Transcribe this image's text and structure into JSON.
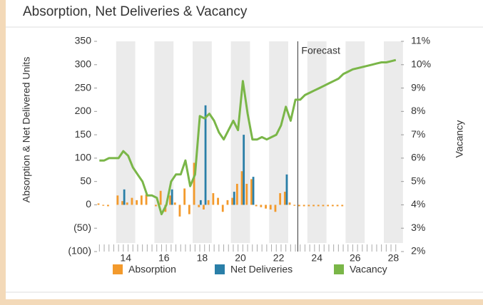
{
  "chart_data": {
    "type": "bar-line",
    "title": "Absorption, Net Deliveries & Vacancy",
    "y_label": "Absorption & Net Delivered Units",
    "y2_label": "Vacancy",
    "annotation": "Forecast",
    "categories": [
      null,
      null,
      null,
      null,
      null,
      "14",
      null,
      null,
      null,
      null,
      null,
      null,
      null,
      "16",
      null,
      null,
      null,
      null,
      null,
      null,
      null,
      "18",
      null,
      null,
      null,
      null,
      null,
      null,
      null,
      "20",
      null,
      null,
      null,
      null,
      null,
      null,
      null,
      "22",
      null,
      null,
      null,
      null,
      null,
      null,
      null,
      "24",
      null,
      null,
      null,
      null,
      null,
      null,
      null,
      "26",
      null,
      null,
      null,
      null,
      null,
      null,
      null,
      "28",
      null
    ],
    "ylim": [
      -100,
      350
    ],
    "yticks": [
      {
        "value": -100,
        "label": "(100)"
      },
      {
        "value": -50,
        "label": "(50)"
      },
      0,
      50,
      100,
      150,
      200,
      250,
      300,
      350
    ],
    "y2lim": [
      2,
      11
    ],
    "y2ticks": [
      {
        "value": 2,
        "label": "2%"
      },
      {
        "value": 3,
        "label": "3%"
      },
      {
        "value": 4,
        "label": "4%"
      },
      {
        "value": 5,
        "label": "5%"
      },
      {
        "value": 6,
        "label": "6%"
      },
      {
        "value": 7,
        "label": "7%"
      },
      {
        "value": 8,
        "label": "8%"
      },
      {
        "value": 9,
        "label": "9%"
      },
      {
        "value": 10,
        "label": "10%"
      },
      {
        "value": 11,
        "label": "11%"
      }
    ],
    "series": [
      {
        "name": "Absorption",
        "color": "#f39a2c",
        "kind": "bar",
        "values": [
          3,
          -2,
          -3,
          0,
          20,
          8,
          5,
          15,
          10,
          20,
          22,
          0,
          -3,
          30,
          -15,
          20,
          5,
          -25,
          35,
          -20,
          90,
          -5,
          -10,
          10,
          25,
          15,
          -15,
          10,
          15,
          45,
          72,
          45,
          55,
          -3,
          -5,
          -8,
          -10,
          -15,
          25,
          28,
          5,
          -2,
          -3,
          -3,
          -3,
          -3,
          -3,
          -3,
          -3,
          -3,
          -3,
          -3,
          0,
          0,
          0,
          0,
          0,
          0,
          0,
          0,
          0,
          0,
          0
        ]
      },
      {
        "name": "Net Deliveries",
        "color": "#2a7fa8",
        "kind": "bar",
        "values": [
          0,
          0,
          0,
          0,
          0,
          33,
          0,
          0,
          0,
          0,
          0,
          0,
          0,
          0,
          0,
          33,
          0,
          0,
          0,
          0,
          0,
          10,
          213,
          0,
          0,
          0,
          0,
          0,
          28,
          0,
          150,
          0,
          60,
          0,
          0,
          0,
          0,
          0,
          0,
          65,
          0,
          0,
          0,
          0,
          0,
          0,
          0,
          0,
          0,
          0,
          0,
          0,
          0,
          0,
          0,
          0,
          0,
          0,
          0,
          0,
          0,
          0,
          0
        ]
      },
      {
        "name": "Vacancy",
        "color": "#7ab648",
        "kind": "line",
        "axis": "y2",
        "values": [
          5.9,
          5.9,
          6.0,
          6.0,
          6.0,
          6.3,
          6.1,
          5.6,
          5.3,
          5.0,
          4.4,
          4.4,
          4.3,
          3.6,
          4.0,
          5.0,
          5.3,
          5.3,
          5.9,
          4.8,
          5.3,
          7.8,
          7.7,
          7.9,
          7.6,
          7.1,
          6.8,
          7.2,
          7.6,
          7.2,
          9.3,
          7.9,
          6.8,
          6.8,
          6.9,
          6.8,
          6.9,
          7.0,
          7.4,
          8.2,
          7.6,
          8.5,
          8.5,
          8.7,
          8.8,
          8.9,
          9.0,
          9.1,
          9.2,
          9.3,
          9.4,
          9.6,
          9.7,
          9.8,
          9.85,
          9.9,
          9.95,
          10.0,
          10.05,
          10.1,
          10.1,
          10.15,
          10.2
        ]
      }
    ]
  }
}
